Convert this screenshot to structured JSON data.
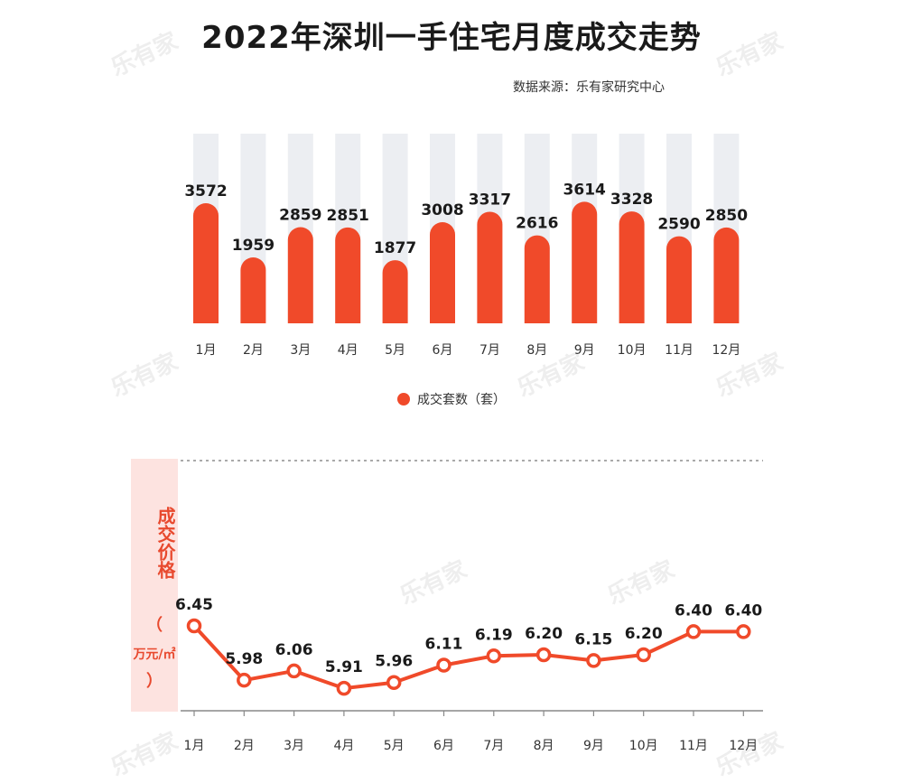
{
  "title": "2022年深圳一手住宅月度成交走势",
  "source": "数据来源：乐有家研究中心",
  "watermark": "乐有家",
  "legend": {
    "label": "成交套数（套）"
  },
  "price_axis": {
    "label": "成交价格",
    "paren_open": "（",
    "unit": "万元/㎡",
    "paren_close": "）"
  },
  "colors": {
    "accent": "#f04a2a",
    "bar_bg": "#eceef2",
    "panel_bg": "#fde3e0"
  },
  "chart_data": [
    {
      "type": "bar",
      "title": "2022年深圳一手住宅月度成交走势",
      "categories": [
        "1月",
        "2月",
        "3月",
        "4月",
        "5月",
        "6月",
        "7月",
        "8月",
        "9月",
        "10月",
        "11月",
        "12月"
      ],
      "series": [
        {
          "name": "成交套数（套）",
          "values": [
            3572,
            1959,
            2859,
            2851,
            1877,
            3008,
            3317,
            2616,
            3614,
            3328,
            2590,
            2850
          ]
        }
      ],
      "ylim": [
        0,
        4800
      ],
      "grid": false,
      "legend": "bottom-center"
    },
    {
      "type": "line",
      "categories": [
        "1月",
        "2月",
        "3月",
        "4月",
        "5月",
        "6月",
        "7月",
        "8月",
        "9月",
        "10月",
        "11月",
        "12月"
      ],
      "series": [
        {
          "values": [
            6.45,
            5.98,
            6.06,
            5.91,
            5.96,
            6.11,
            6.19,
            6.2,
            6.15,
            6.2,
            6.4,
            6.4
          ]
        }
      ],
      "ylabel": "成交价格（万元/㎡）",
      "ylim": [
        5.5,
        7.5
      ],
      "grid": false
    }
  ]
}
